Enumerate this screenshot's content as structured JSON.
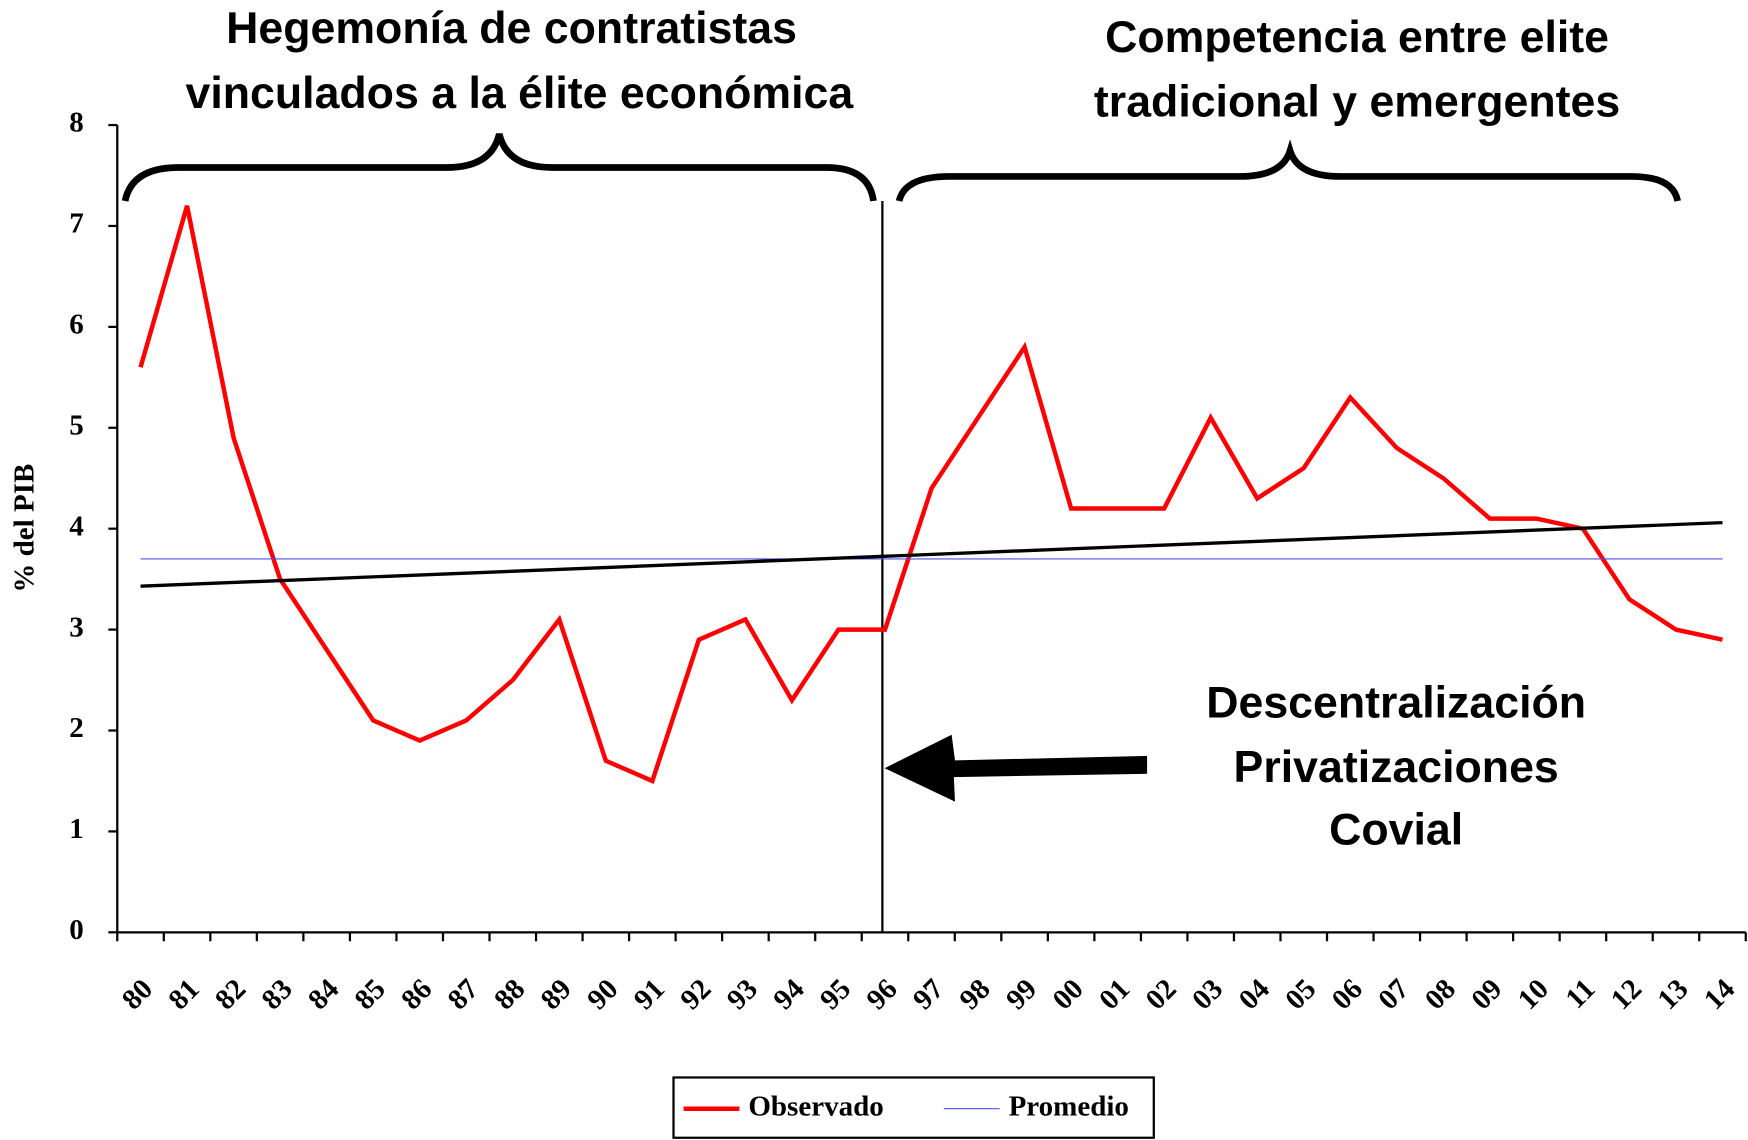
{
  "chart_data": {
    "type": "line",
    "annotations": [
      "Hegemonía de contratistas",
      "vinculados a la élite económica",
      "Competencia entre elite",
      "tradicional y emergentes",
      "Descentralización",
      "Privatizaciones",
      "Covial"
    ],
    "ylabel": "% del PIB",
    "categories": [
      "80",
      "81",
      "82",
      "83",
      "84",
      "85",
      "86",
      "87",
      "88",
      "89",
      "90",
      "91",
      "92",
      "93",
      "94",
      "95",
      "96",
      "97",
      "98",
      "99",
      "00",
      "01",
      "02",
      "03",
      "04",
      "05",
      "06",
      "07",
      "08",
      "09",
      "10",
      "11",
      "12",
      "13",
      "14"
    ],
    "series": [
      {
        "name": "Observado",
        "color": "#ff0000",
        "values": [
          5.6,
          7.2,
          4.9,
          3.5,
          2.8,
          2.1,
          1.9,
          2.1,
          2.5,
          3.1,
          1.7,
          1.5,
          2.9,
          3.1,
          2.3,
          3.0,
          3.0,
          4.4,
          5.1,
          5.8,
          4.2,
          4.2,
          4.2,
          5.1,
          4.3,
          4.6,
          5.3,
          4.8,
          4.5,
          4.1,
          4.1,
          4.0,
          3.3,
          3.0,
          2.9
        ]
      },
      {
        "name": "Promedio",
        "color": "#5050e0",
        "values": [
          3.7,
          3.7,
          3.7,
          3.7,
          3.7,
          3.7,
          3.7,
          3.7,
          3.7,
          3.7,
          3.7,
          3.7,
          3.7,
          3.7,
          3.7,
          3.7,
          3.7,
          3.7,
          3.7,
          3.7,
          3.7,
          3.7,
          3.7,
          3.7,
          3.7,
          3.7,
          3.7,
          3.7,
          3.7,
          3.7,
          3.7,
          3.7,
          3.7,
          3.7,
          3.7
        ]
      }
    ],
    "trendline": {
      "color": "#000000",
      "start": 3.43,
      "end": 4.06
    },
    "ylim": [
      0,
      8
    ],
    "yticks": [
      0,
      1,
      2,
      3,
      4,
      5,
      6,
      7,
      8
    ]
  }
}
